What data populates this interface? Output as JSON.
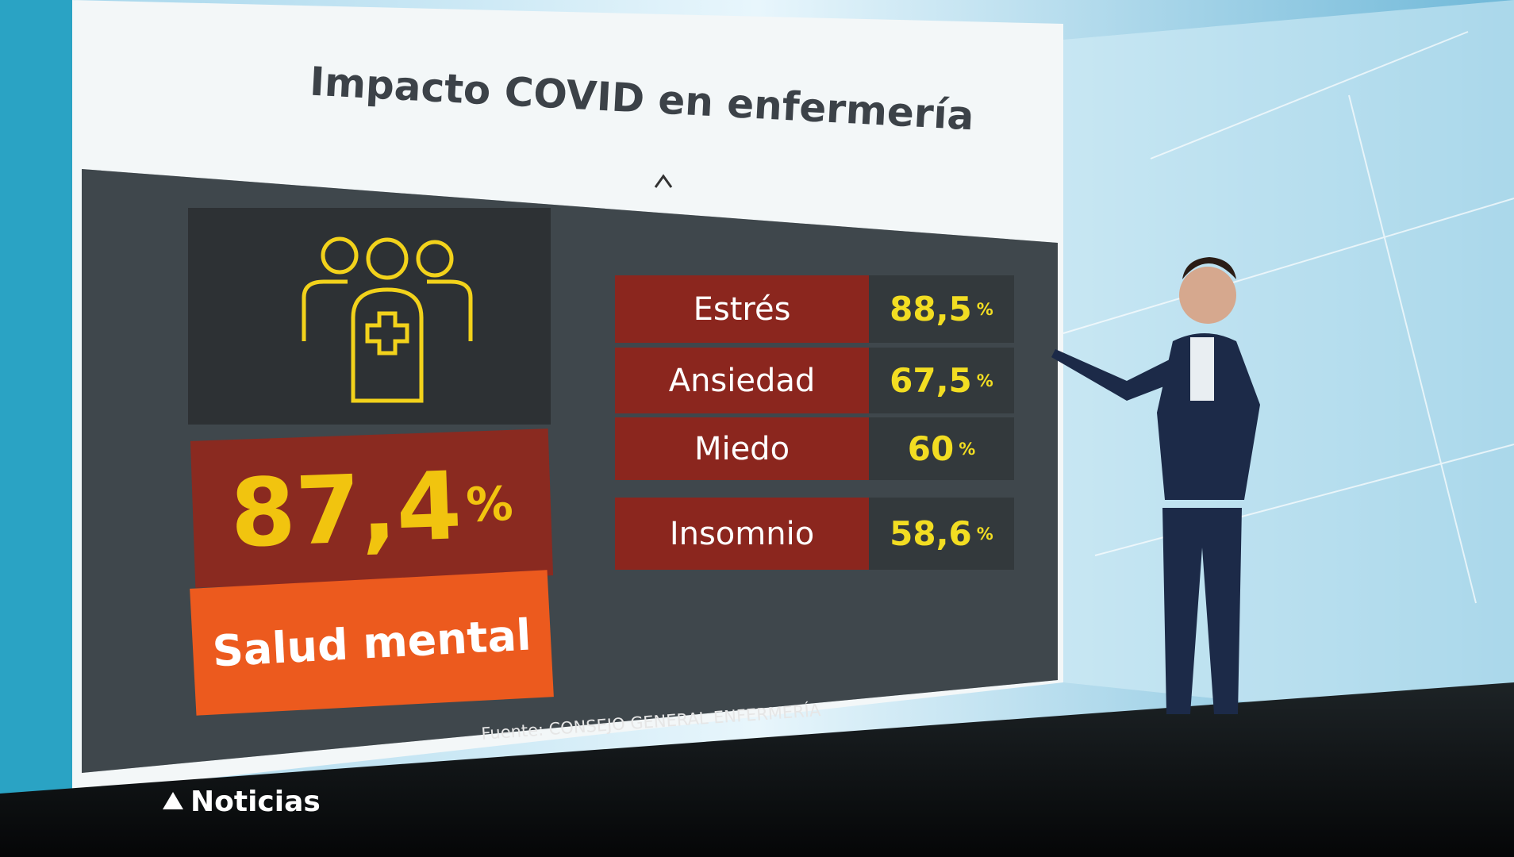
{
  "screen": {
    "title": "Impacto COVID en enfermería",
    "main": {
      "value": "87,4",
      "unit": "%",
      "label": "Salud mental"
    },
    "items": [
      {
        "label": "Estrés",
        "value": "88,5",
        "unit": "%"
      },
      {
        "label": "Ansiedad",
        "value": "67,5",
        "unit": "%"
      },
      {
        "label": "Miedo",
        "value": "60",
        "unit": "%"
      },
      {
        "label": "Insomnio",
        "value": "58,6",
        "unit": "%"
      }
    ],
    "source": "Fuente: CONSEJO GENERAL ENFERMERÍA"
  },
  "logo": "Noticias"
}
